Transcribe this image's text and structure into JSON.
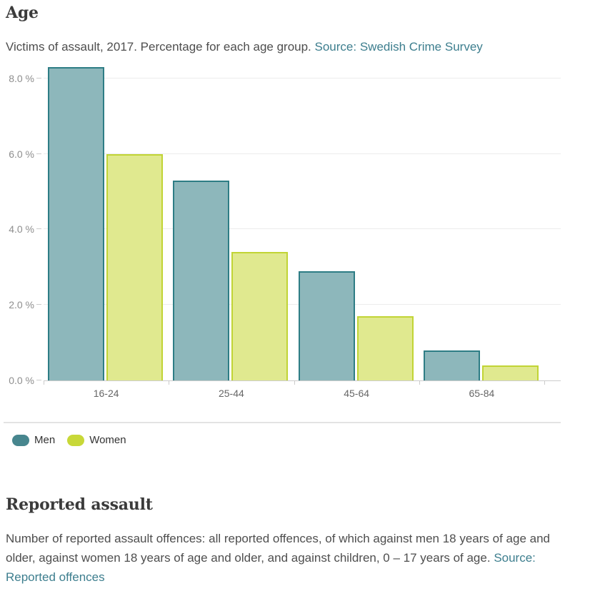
{
  "page": {
    "age_section": {
      "title": "Age",
      "subtitle_text": "Victims of assault, 2017. Percentage for each age group.",
      "subtitle_link": "Source: Swedish Crime Survey"
    },
    "reported_section": {
      "title": "Reported assault",
      "body_text": "Number of reported assault offences: all reported offences, of which against men 18 years of age and older, against women 18 years of age and older, and against children, 0 – 17 years of age.",
      "body_link": "Source: Reported offences"
    }
  },
  "colors": {
    "link_teal": "#3d7e8e",
    "heading": "#3b3b3b",
    "body_text": "#4e4e4e",
    "axis_line": "#cccccc",
    "gridline": "#ececec",
    "y_axis_label": "#8e8e8e",
    "x_axis_label": "#666666"
  },
  "chart_data": {
    "type": "bar",
    "title": "Age",
    "subtitle": "Victims of assault, 2017. Percentage for each age group. Source: Swedish Crime Survey",
    "categories": [
      "16-24",
      "25-44",
      "45-64",
      "65-84"
    ],
    "series": [
      {
        "name": "Men",
        "values": [
          8.3,
          5.3,
          2.9,
          0.8
        ],
        "fill": "#8db7bb",
        "stroke": "#2e7d85",
        "legend_color": "#47868e"
      },
      {
        "name": "Women",
        "values": [
          6.0,
          3.4,
          1.7,
          0.4
        ],
        "fill": "#e0e98f",
        "stroke": "#c1d435",
        "legend_color": "#c8d838"
      }
    ],
    "yticks": [
      {
        "value": 0,
        "label": "0.0 %"
      },
      {
        "value": 2,
        "label": "2.0 %"
      },
      {
        "value": 4,
        "label": "4.0 %"
      },
      {
        "value": 6,
        "label": "6.0 %"
      },
      {
        "value": 8,
        "label": "8.0 %"
      }
    ],
    "ylim": [
      0,
      8.375
    ],
    "xlabel": "",
    "ylabel": "",
    "unit": "%",
    "grid": true,
    "legend_position": "bottom-left"
  }
}
